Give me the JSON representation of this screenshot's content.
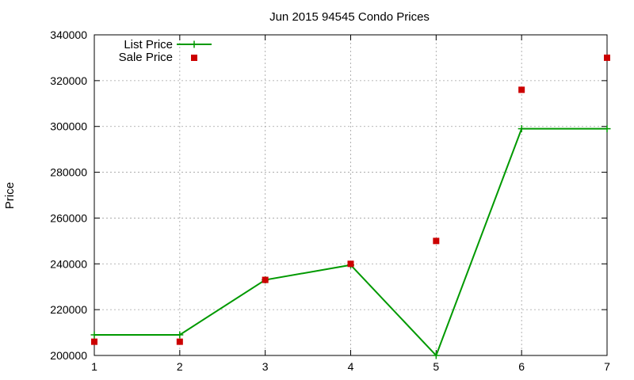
{
  "chart_data": {
    "type": "line",
    "title": "Jun 2015 94545 Condo Prices",
    "xlabel": "",
    "ylabel": "Price",
    "x": [
      1,
      2,
      3,
      4,
      5,
      6,
      7
    ],
    "xlim": [
      1,
      7
    ],
    "ylim": [
      200000,
      340000
    ],
    "xticks": [
      "1",
      "2",
      "3",
      "4",
      "5",
      "6",
      "7"
    ],
    "yticks": [
      "200000",
      "220000",
      "240000",
      "260000",
      "280000",
      "300000",
      "320000",
      "340000"
    ],
    "grid": true,
    "legend_position": "top-left",
    "series": [
      {
        "name": "List Price",
        "style": "line+plus",
        "color": "#009900",
        "values": [
          209000,
          209000,
          233000,
          239500,
          200000,
          299000,
          299000
        ]
      },
      {
        "name": "Sale Price",
        "style": "square-points",
        "color": "#cc0000",
        "values": [
          206000,
          206000,
          233000,
          240000,
          250000,
          316000,
          330000
        ]
      }
    ]
  }
}
